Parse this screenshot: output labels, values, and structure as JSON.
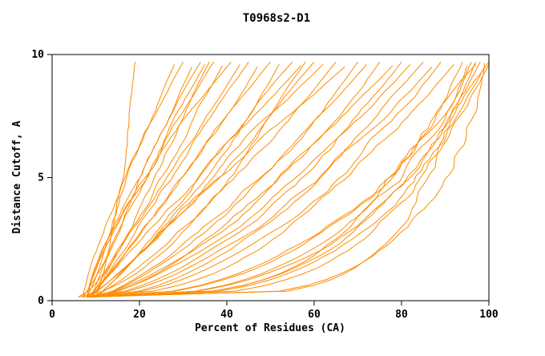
{
  "chart_data": {
    "type": "line",
    "title": "T0968s2-D1",
    "xlabel": "Percent of Residues (CA)",
    "ylabel": "Distance Cutoff, A",
    "xlim": [
      0,
      100
    ],
    "ylim": [
      0,
      10
    ],
    "x_ticks": [
      0,
      20,
      40,
      60,
      80,
      100
    ],
    "y_ticks": [
      0,
      5,
      10
    ],
    "grid": false,
    "legend": "none",
    "line_color": "#FF8C00",
    "frame_color": "#000000",
    "series_note": "Each curve: percent of CA residues (x) under distance cutoff (y); curves described by bottom start x, x reached at top cutoff, curvature exponent and top cutoff reached.",
    "series": [
      {
        "start_x": 9,
        "top_x": 19,
        "shape": 0.55,
        "top_y": 9.7
      },
      {
        "start_x": 7,
        "top_x": 28,
        "shape": 1.15,
        "top_y": 9.6
      },
      {
        "start_x": 8,
        "top_x": 30,
        "shape": 0.95,
        "top_y": 9.7
      },
      {
        "start_x": 8,
        "top_x": 32,
        "shape": 1.25,
        "top_y": 9.5
      },
      {
        "start_x": 9,
        "top_x": 34,
        "shape": 1.05,
        "top_y": 9.7
      },
      {
        "start_x": 7,
        "top_x": 35,
        "shape": 0.9,
        "top_y": 9.6
      },
      {
        "start_x": 6,
        "top_x": 36,
        "shape": 0.7,
        "top_y": 9.7
      },
      {
        "start_x": 8,
        "top_x": 37,
        "shape": 1.2,
        "top_y": 9.7
      },
      {
        "start_x": 9,
        "top_x": 39,
        "shape": 1.0,
        "top_y": 9.55
      },
      {
        "start_x": 8,
        "top_x": 41,
        "shape": 1.3,
        "top_y": 9.7
      },
      {
        "start_x": 10,
        "top_x": 43,
        "shape": 1.1,
        "top_y": 9.6
      },
      {
        "start_x": 9,
        "top_x": 45,
        "shape": 0.95,
        "top_y": 9.7
      },
      {
        "start_x": 8,
        "top_x": 47,
        "shape": 0.9,
        "top_y": 9.5
      },
      {
        "start_x": 9,
        "top_x": 50,
        "shape": 1.0,
        "top_y": 9.7
      },
      {
        "start_x": 8,
        "top_x": 52,
        "shape": 0.8,
        "top_y": 9.6
      },
      {
        "start_x": 10,
        "top_x": 55,
        "shape": 0.9,
        "top_y": 9.7
      },
      {
        "start_x": 9,
        "top_x": 57,
        "shape": 1.05,
        "top_y": 9.55
      },
      {
        "start_x": 6,
        "top_x": 58,
        "shape": 0.6,
        "top_y": 9.7
      },
      {
        "start_x": 8,
        "top_x": 60,
        "shape": 0.85,
        "top_y": 9.7
      },
      {
        "start_x": 10,
        "top_x": 62,
        "shape": 0.95,
        "top_y": 9.6
      },
      {
        "start_x": 9,
        "top_x": 65,
        "shape": 0.8,
        "top_y": 9.7
      },
      {
        "start_x": 8,
        "top_x": 67,
        "shape": 0.9,
        "top_y": 9.5
      },
      {
        "start_x": 10,
        "top_x": 70,
        "shape": 0.75,
        "top_y": 9.7
      },
      {
        "start_x": 9,
        "top_x": 72,
        "shape": 0.7,
        "top_y": 9.6
      },
      {
        "start_x": 8,
        "top_x": 75,
        "shape": 0.65,
        "top_y": 9.7
      },
      {
        "start_x": 10,
        "top_x": 78,
        "shape": 0.7,
        "top_y": 9.55
      },
      {
        "start_x": 9,
        "top_x": 80,
        "shape": 0.6,
        "top_y": 9.7
      },
      {
        "start_x": 8,
        "top_x": 82,
        "shape": 0.65,
        "top_y": 9.6
      },
      {
        "start_x": 10,
        "top_x": 85,
        "shape": 0.55,
        "top_y": 9.7
      },
      {
        "start_x": 9,
        "top_x": 87,
        "shape": 0.6,
        "top_y": 9.5
      },
      {
        "start_x": 8,
        "top_x": 89,
        "shape": 0.5,
        "top_y": 9.7
      },
      {
        "start_x": 7,
        "top_x": 92,
        "shape": 0.45,
        "top_y": 9.6
      },
      {
        "start_x": 8,
        "top_x": 94,
        "shape": 0.4,
        "top_y": 9.7
      },
      {
        "start_x": 9,
        "top_x": 95,
        "shape": 0.35,
        "top_y": 9.55
      },
      {
        "start_x": 8,
        "top_x": 96,
        "shape": 0.4,
        "top_y": 9.7
      },
      {
        "start_x": 7,
        "top_x": 97,
        "shape": 0.3,
        "top_y": 9.6
      },
      {
        "start_x": 8,
        "top_x": 97,
        "shape": 0.18,
        "top_y": 9.7
      },
      {
        "start_x": 9,
        "top_x": 98,
        "shape": 0.35,
        "top_y": 9.7
      },
      {
        "start_x": 8,
        "top_x": 99,
        "shape": 0.3,
        "top_y": 9.5
      },
      {
        "start_x": 9,
        "top_x": 99,
        "shape": 0.2,
        "top_y": 9.65
      },
      {
        "start_x": 9,
        "top_x": 100,
        "shape": 0.32,
        "top_y": 9.7
      },
      {
        "start_x": 10,
        "top_x": 100,
        "shape": 0.28,
        "top_y": 9.6
      }
    ]
  }
}
